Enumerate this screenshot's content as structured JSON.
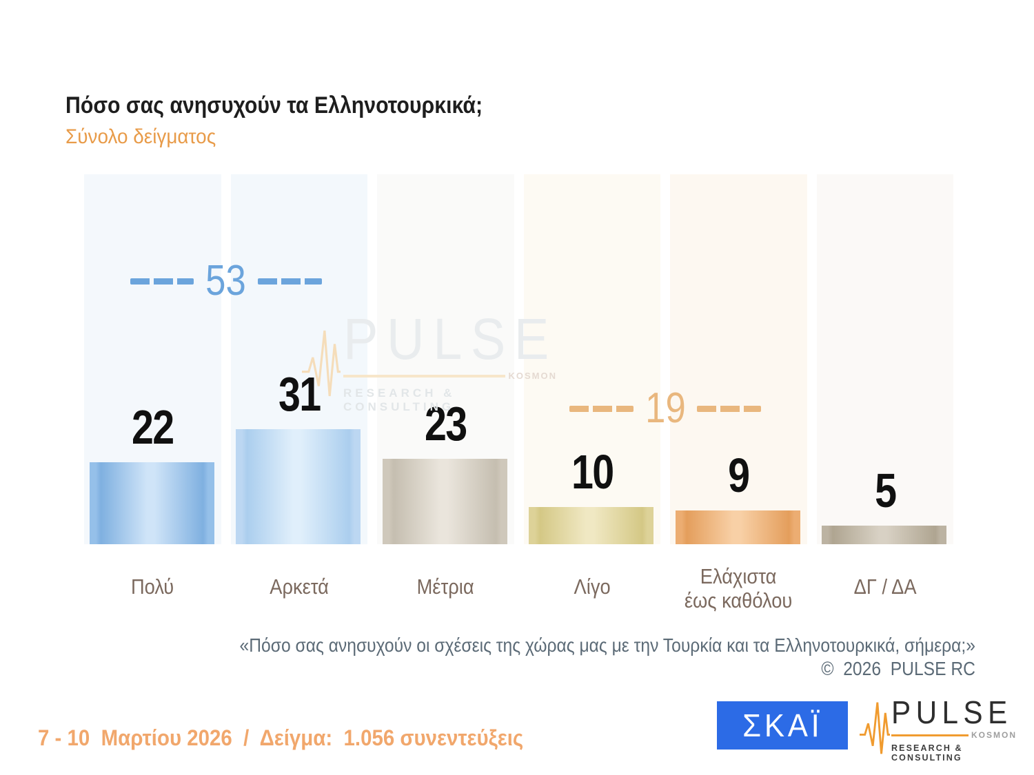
{
  "header": {
    "title": "Πόσο σας ανησυχούν τα Ελληνοτουρκικά;",
    "subtitle": "Σύνολο δείγματος",
    "title_color": "#1e1e1e",
    "subtitle_color": "#e89b49"
  },
  "chart_data": {
    "type": "bar",
    "title": "Πόσο σας ανησυχούν τα Ελληνοτουρκικά;",
    "subtitle": "Σύνολο δείγματος",
    "unit": "percent",
    "ylim": [
      0,
      100
    ],
    "grid": false,
    "categories": [
      "Πολύ",
      "Αρκετά",
      "Μέτρια",
      "Λίγο",
      "Ελάχιστα έως καθόλου",
      "ΔΓ / ΔΑ"
    ],
    "values": [
      22,
      31,
      23,
      10,
      9,
      5
    ],
    "value_label_color": "#101010",
    "category_label_color": "#7b695e",
    "bars": [
      {
        "label_lines": [
          "Πολύ"
        ],
        "value": 22,
        "rim": "#95c0e9",
        "edge": "#7fb0e0",
        "center": "#cfe4f8",
        "column_bg": "#f4f8fc"
      },
      {
        "label_lines": [
          "Αρκετά"
        ],
        "value": 31,
        "rim": "#bcd7f2",
        "edge": "#abceee",
        "center": "#e0effb",
        "column_bg": "#f3f8fc"
      },
      {
        "label_lines": [
          "Μέτρια"
        ],
        "value": 23,
        "rim": "#cfc8bb",
        "edge": "#c5beb0",
        "center": "#eae5dc",
        "column_bg": "#fafaf9"
      },
      {
        "label_lines": [
          "Λίγο"
        ],
        "value": 10,
        "rim": "#ddd298",
        "edge": "#d4c885",
        "center": "#f0e8c3",
        "column_bg": "#fdfaf3"
      },
      {
        "label_lines": [
          "Ελάχιστα",
          "έως καθόλου"
        ],
        "value": 9,
        "rim": "#ecad72",
        "edge": "#e49e5c",
        "center": "#f8d0a6",
        "column_bg": "#fdf8f1"
      },
      {
        "label_lines": [
          "ΔΓ / ΔΑ"
        ],
        "value": 5,
        "rim": "#bcb3a2",
        "edge": "#afa591",
        "center": "#d8d1c4",
        "column_bg": "#fbf9f7"
      }
    ],
    "aggregates": [
      {
        "label": "53",
        "value": 53,
        "between": [
          0,
          1
        ],
        "color": "#6ba4dc"
      },
      {
        "label": "19",
        "value": 19,
        "between": [
          3,
          4
        ],
        "color": "#e9b77e"
      }
    ]
  },
  "watermark": {
    "name": "PULSE",
    "kosmon": "KOSMON",
    "sub": "RESEARCH & CONSULTING"
  },
  "caption": {
    "line1": "«Πόσο σας ανησυχούν οι σχέσεις της χώρας μας με την Τουρκία και τα Ελληνοτουρκικά, σήμερα;»",
    "line2": "©  2026  PULSE RC",
    "color": "#5b6a76"
  },
  "footer": {
    "fieldwork": "7 - 10  Μαρτίου 2026  /  Δείγμα:  1.056 συνεντεύξεις",
    "fieldwork_color": "#f1a76c",
    "skai_logo": {
      "text": "ΣΚΑΪ",
      "bg": "#2c6be6",
      "fg": "#ffffff"
    },
    "pulse_logo": {
      "name": "PULSE",
      "kosmon": "KOSMON",
      "sub": "RESEARCH & CONSULTING",
      "accent": "#f09b2f",
      "text_color": "#2e2e2e"
    }
  }
}
